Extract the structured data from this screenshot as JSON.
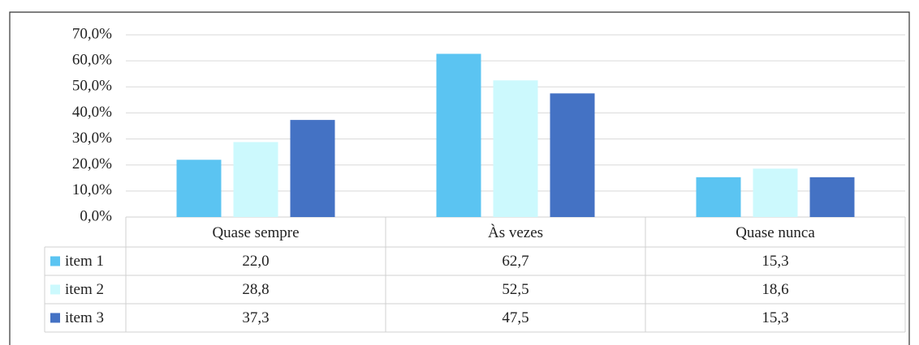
{
  "chart_data": {
    "type": "bar",
    "categories": [
      "Quase sempre",
      "Às vezes",
      "Quase nunca"
    ],
    "series": [
      {
        "name": "item 1",
        "color": "#5bc4f2",
        "values": [
          22.0,
          62.7,
          15.3
        ],
        "value_labels": [
          "22,0",
          "62,7",
          "15,3"
        ]
      },
      {
        "name": "item 2",
        "color": "#ccf9fd",
        "values": [
          28.8,
          52.5,
          18.6
        ],
        "value_labels": [
          "28,8",
          "52,5",
          "18,6"
        ]
      },
      {
        "name": "item 3",
        "color": "#4472c4",
        "values": [
          37.3,
          47.5,
          15.3
        ],
        "value_labels": [
          "37,3",
          "47,5",
          "15,3"
        ]
      }
    ],
    "ylim": [
      0,
      70
    ],
    "yticks": [
      {
        "value": 0,
        "label": "0,0%"
      },
      {
        "value": 10,
        "label": "10,0%"
      },
      {
        "value": 20,
        "label": "20,0%"
      },
      {
        "value": 30,
        "label": "30,0%"
      },
      {
        "value": 40,
        "label": "40,0%"
      },
      {
        "value": 50,
        "label": "50,0%"
      },
      {
        "value": 60,
        "label": "60,0%"
      },
      {
        "value": 70,
        "label": "70,0%"
      }
    ],
    "grid": true
  }
}
